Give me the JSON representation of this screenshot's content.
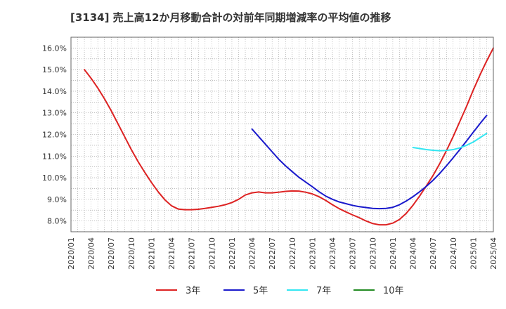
{
  "chart_data": {
    "type": "line",
    "title": "[3134]  売上高12か月移動合計の対前年同期増減率の平均値の推移",
    "xlabel": "",
    "ylabel": "",
    "x_ticks": [
      "2020/01",
      "2020/04",
      "2020/07",
      "2020/10",
      "2021/01",
      "2021/04",
      "2021/07",
      "2021/10",
      "2022/01",
      "2022/04",
      "2022/07",
      "2022/10",
      "2023/01",
      "2023/04",
      "2023/07",
      "2023/10",
      "2024/01",
      "2024/04",
      "2024/07",
      "2024/10",
      "2025/01",
      "2025/04"
    ],
    "y_ticks": [
      "8.0%",
      "9.0%",
      "10.0%",
      "11.0%",
      "12.0%",
      "13.0%",
      "14.0%",
      "15.0%",
      "16.0%"
    ],
    "ylim": [
      7.5,
      16.5
    ],
    "grid": true,
    "legend_position": "bottom",
    "series": [
      {
        "name": "3年",
        "color": "#dd2222",
        "points": [
          [
            "2020/03",
            15.0
          ],
          [
            "2020/04",
            14.6
          ],
          [
            "2020/05",
            14.15
          ],
          [
            "2020/06",
            13.65
          ],
          [
            "2020/07",
            13.1
          ],
          [
            "2020/08",
            12.5
          ],
          [
            "2020/09",
            11.9
          ],
          [
            "2020/10",
            11.3
          ],
          [
            "2020/11",
            10.75
          ],
          [
            "2020/12",
            10.25
          ],
          [
            "2021/01",
            9.78
          ],
          [
            "2021/02",
            9.35
          ],
          [
            "2021/03",
            8.98
          ],
          [
            "2021/04",
            8.7
          ],
          [
            "2021/05",
            8.55
          ],
          [
            "2021/06",
            8.52
          ],
          [
            "2021/07",
            8.52
          ],
          [
            "2021/08",
            8.54
          ],
          [
            "2021/09",
            8.58
          ],
          [
            "2021/10",
            8.63
          ],
          [
            "2021/11",
            8.68
          ],
          [
            "2021/12",
            8.75
          ],
          [
            "2022/01",
            8.85
          ],
          [
            "2022/02",
            9.0
          ],
          [
            "2022/03",
            9.2
          ],
          [
            "2022/04",
            9.3
          ],
          [
            "2022/05",
            9.34
          ],
          [
            "2022/06",
            9.3
          ],
          [
            "2022/07",
            9.3
          ],
          [
            "2022/08",
            9.33
          ],
          [
            "2022/09",
            9.37
          ],
          [
            "2022/10",
            9.39
          ],
          [
            "2022/11",
            9.38
          ],
          [
            "2022/12",
            9.33
          ],
          [
            "2023/01",
            9.25
          ],
          [
            "2023/02",
            9.12
          ],
          [
            "2023/03",
            8.95
          ],
          [
            "2023/04",
            8.75
          ],
          [
            "2023/05",
            8.57
          ],
          [
            "2023/06",
            8.42
          ],
          [
            "2023/07",
            8.28
          ],
          [
            "2023/08",
            8.15
          ],
          [
            "2023/09",
            8.0
          ],
          [
            "2023/10",
            7.88
          ],
          [
            "2023/11",
            7.82
          ],
          [
            "2023/12",
            7.82
          ],
          [
            "2024/01",
            7.9
          ],
          [
            "2024/02",
            8.07
          ],
          [
            "2024/03",
            8.35
          ],
          [
            "2024/04",
            8.72
          ],
          [
            "2024/05",
            9.15
          ],
          [
            "2024/06",
            9.62
          ],
          [
            "2024/07",
            10.1
          ],
          [
            "2024/08",
            10.65
          ],
          [
            "2024/09",
            11.25
          ],
          [
            "2024/10",
            11.9
          ],
          [
            "2024/11",
            12.6
          ],
          [
            "2024/12",
            13.3
          ],
          [
            "2025/01",
            14.05
          ],
          [
            "2025/02",
            14.75
          ],
          [
            "2025/03",
            15.4
          ],
          [
            "2025/04",
            16.0
          ]
        ]
      },
      {
        "name": "5年",
        "color": "#1a1acc",
        "points": [
          [
            "2022/04",
            12.25
          ],
          [
            "2022/05",
            11.9
          ],
          [
            "2022/06",
            11.55
          ],
          [
            "2022/07",
            11.2
          ],
          [
            "2022/08",
            10.85
          ],
          [
            "2022/09",
            10.55
          ],
          [
            "2022/10",
            10.28
          ],
          [
            "2022/11",
            10.02
          ],
          [
            "2022/12",
            9.8
          ],
          [
            "2023/01",
            9.58
          ],
          [
            "2023/02",
            9.35
          ],
          [
            "2023/03",
            9.15
          ],
          [
            "2023/04",
            9.0
          ],
          [
            "2023/05",
            8.88
          ],
          [
            "2023/06",
            8.8
          ],
          [
            "2023/07",
            8.72
          ],
          [
            "2023/08",
            8.66
          ],
          [
            "2023/09",
            8.62
          ],
          [
            "2023/10",
            8.58
          ],
          [
            "2023/11",
            8.57
          ],
          [
            "2023/12",
            8.58
          ],
          [
            "2024/01",
            8.63
          ],
          [
            "2024/02",
            8.75
          ],
          [
            "2024/03",
            8.92
          ],
          [
            "2024/04",
            9.12
          ],
          [
            "2024/05",
            9.35
          ],
          [
            "2024/06",
            9.6
          ],
          [
            "2024/07",
            9.88
          ],
          [
            "2024/08",
            10.2
          ],
          [
            "2024/09",
            10.55
          ],
          [
            "2024/10",
            10.92
          ],
          [
            "2024/11",
            11.3
          ],
          [
            "2024/12",
            11.7
          ],
          [
            "2025/01",
            12.1
          ],
          [
            "2025/02",
            12.5
          ],
          [
            "2025/03",
            12.88
          ]
        ]
      },
      {
        "name": "7年",
        "color": "#33e6f2",
        "points": [
          [
            "2024/04",
            11.4
          ],
          [
            "2024/05",
            11.35
          ],
          [
            "2024/06",
            11.3
          ],
          [
            "2024/07",
            11.27
          ],
          [
            "2024/08",
            11.25
          ],
          [
            "2024/09",
            11.26
          ],
          [
            "2024/10",
            11.3
          ],
          [
            "2024/11",
            11.38
          ],
          [
            "2024/12",
            11.5
          ],
          [
            "2025/01",
            11.65
          ],
          [
            "2025/02",
            11.85
          ],
          [
            "2025/03",
            12.05
          ]
        ]
      },
      {
        "name": "10年",
        "color": "#228b22",
        "points": []
      }
    ]
  }
}
